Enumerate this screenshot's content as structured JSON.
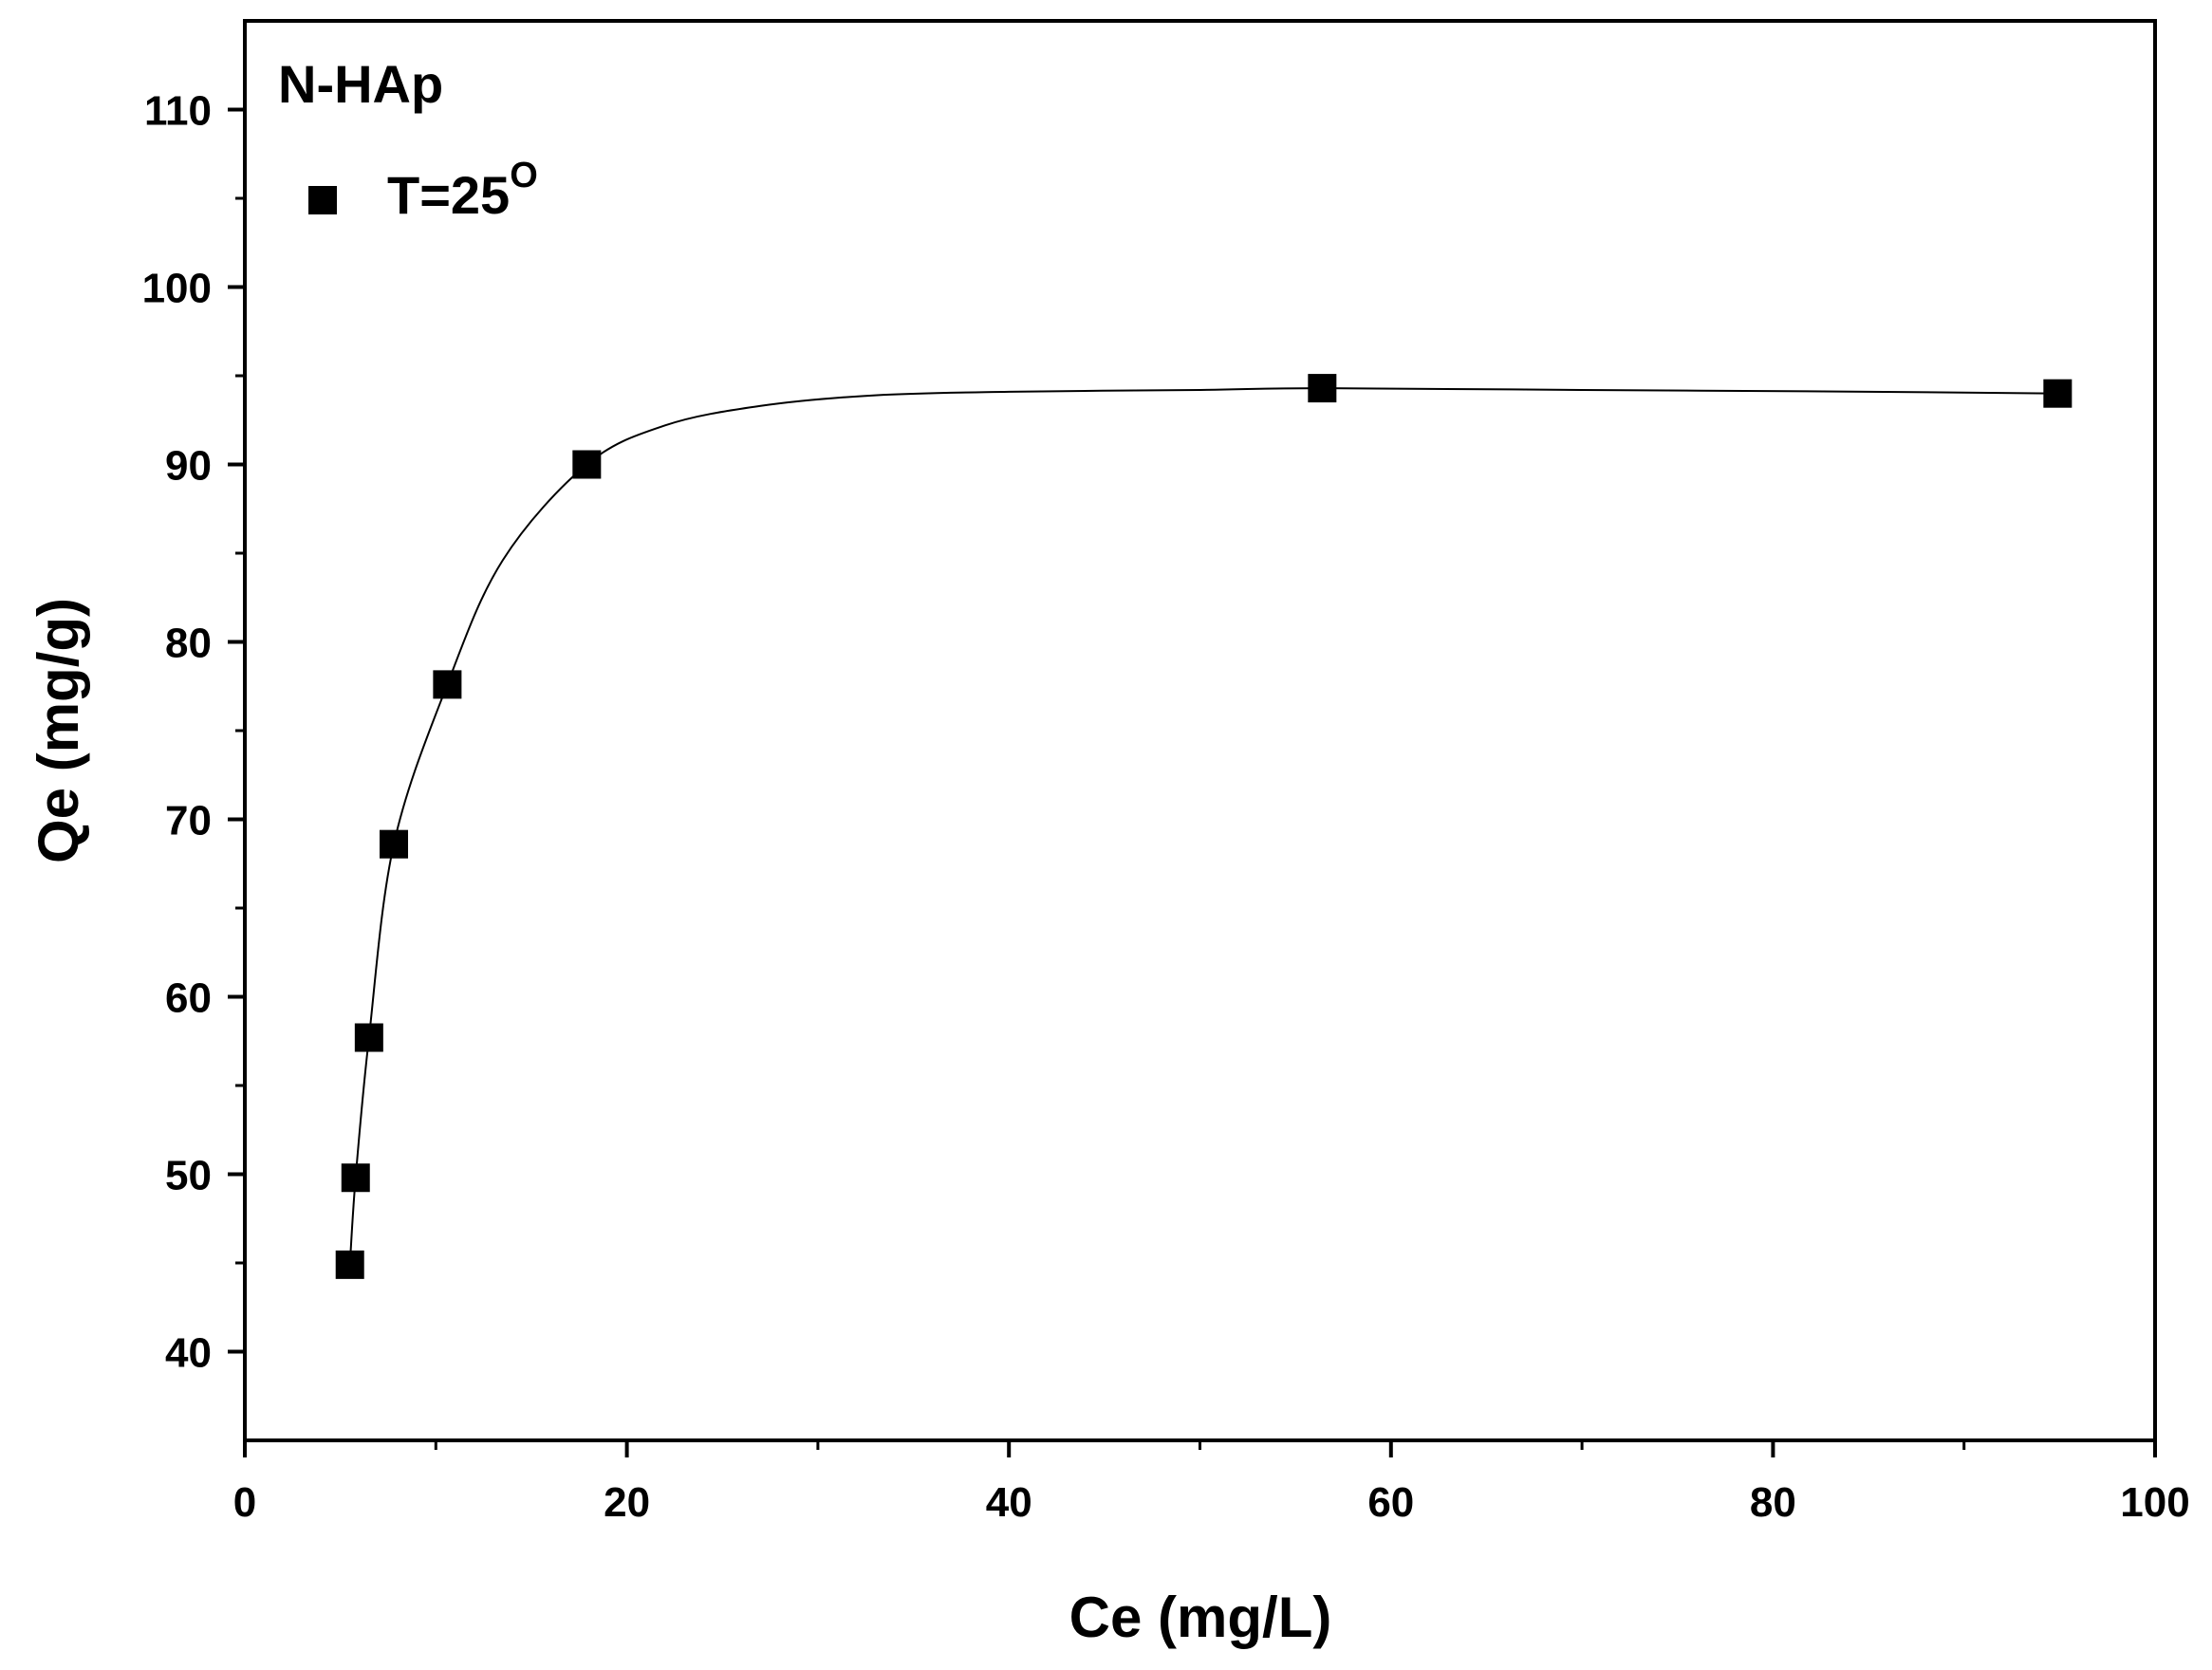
{
  "chart_data": {
    "type": "scatter",
    "annotation": "N-HAp",
    "xlabel": "Ce (mg/L)",
    "ylabel": "Qe (mg/g)",
    "xlim": [
      0,
      100
    ],
    "ylim": [
      35,
      115
    ],
    "x_ticks": [
      0,
      20,
      40,
      60,
      80,
      100
    ],
    "y_ticks": [
      40,
      50,
      60,
      70,
      80,
      90,
      100,
      110
    ],
    "x_tick_labels": [
      "0",
      "20",
      "40",
      "60",
      "80",
      "100"
    ],
    "y_tick_labels": [
      "40",
      "50",
      "60",
      "70",
      "80",
      "90",
      "100",
      "110"
    ],
    "legend": {
      "position": "top-left",
      "label_base": "T=25",
      "label_sup": "O"
    },
    "grid": false,
    "series": [
      {
        "marker": "square",
        "color": "#000000",
        "x": [
          5.5,
          5.8,
          6.5,
          7.8,
          10.6,
          17.9,
          56.4,
          94.9
        ],
        "y": [
          44.9,
          49.8,
          57.7,
          68.6,
          77.6,
          90.0,
          94.3,
          94.0
        ]
      }
    ],
    "fit_curve": {
      "color": "#000000",
      "x": [
        5.5,
        5.8,
        6.5,
        7.8,
        10.6,
        13.5,
        17.9,
        22,
        27,
        33,
        40,
        50,
        56.4,
        70,
        85,
        94.9
      ],
      "y": [
        44.9,
        49.8,
        57.7,
        68.6,
        77.6,
        84.6,
        90.0,
        92.2,
        93.3,
        93.9,
        94.1,
        94.2,
        94.3,
        94.2,
        94.1,
        94.0
      ]
    }
  }
}
